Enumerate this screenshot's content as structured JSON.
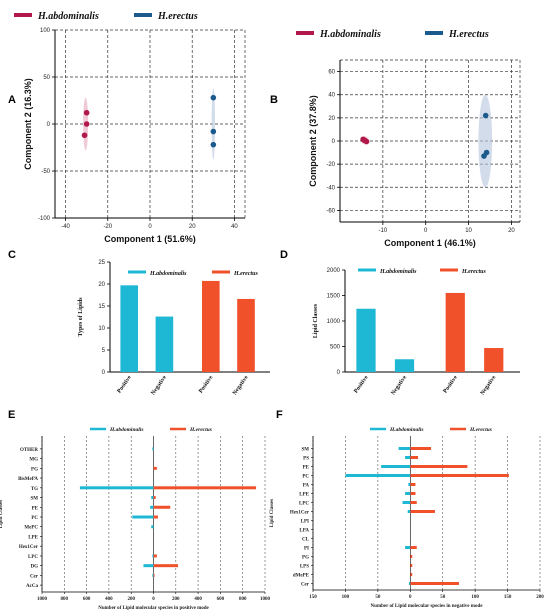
{
  "colors": {
    "ha_pca": "#b0194a",
    "he_pca": "#1a5a8c",
    "ha": "#1fb8d4",
    "he": "#f0512b"
  },
  "chart_data": [
    {
      "id": "A",
      "type": "scatter",
      "xlabel": "Component 1 (51.6%)",
      "ylabel": "Component 2 (16.3%)",
      "xlim": [
        -45,
        45
      ],
      "ylim": [
        -100,
        100
      ],
      "xticks": [
        -40,
        -20,
        0,
        20,
        40
      ],
      "yticks": [
        -100,
        -50,
        0,
        50,
        100
      ],
      "legend": [
        "H.abdominalis",
        "H.erectus"
      ],
      "series": [
        {
          "name": "H.abdominalis",
          "x": [
            -30,
            -30,
            -31
          ],
          "y": [
            12,
            0,
            -12
          ],
          "ellipse": {
            "cx": -30.5,
            "cy": 0,
            "rx": 1.2,
            "ry": 28
          }
        },
        {
          "name": "H.erectus",
          "x": [
            30,
            30,
            30
          ],
          "y": [
            28,
            -8,
            -22
          ],
          "ellipse": {
            "cx": 30,
            "cy": 0,
            "rx": 0.8,
            "ry": 38
          }
        }
      ]
    },
    {
      "id": "B",
      "type": "scatter",
      "xlabel": "Component 1 (46.1%)",
      "ylabel": "Component 2 (37.8%)",
      "xlim": [
        -20,
        22
      ],
      "ylim": [
        -70,
        70
      ],
      "xticks": [
        -10,
        0,
        10,
        20
      ],
      "yticks": [
        -60,
        -40,
        -20,
        0,
        20,
        40,
        60
      ],
      "legend": [
        "H.abdominalis",
        "H.erectus"
      ],
      "series": [
        {
          "name": "H.abdominalis",
          "x": [
            -14.6,
            -14.2,
            -13.8,
            -14.4
          ],
          "y": [
            1.5,
            0.5,
            -0.5,
            0.8
          ],
          "ellipse": {
            "cx": -14.2,
            "cy": 0.5,
            "rx": 0.9,
            "ry": 3.5
          }
        },
        {
          "name": "H.erectus",
          "x": [
            14,
            14.2,
            13.6
          ],
          "y": [
            22,
            -10,
            -13
          ],
          "ellipse": {
            "cx": 13.9,
            "cy": 0,
            "rx": 1.6,
            "ry": 40
          }
        }
      ]
    },
    {
      "id": "C",
      "type": "bar",
      "ylabel": "Types of Lipids",
      "ylim": [
        0,
        25
      ],
      "yticks": [
        0,
        5,
        10,
        15,
        20,
        25
      ],
      "legend": [
        "H.abdominalis",
        "H.erectus"
      ],
      "groups": [
        {
          "name": "H.abdominalis",
          "categories": [
            "Positive",
            "Negative"
          ],
          "values": [
            19.7,
            12.6
          ]
        },
        {
          "name": "H.erectus",
          "categories": [
            "Positive",
            "Negative"
          ],
          "values": [
            20.7,
            16.6
          ]
        }
      ]
    },
    {
      "id": "D",
      "type": "bar",
      "ylabel": "Lipid Classes",
      "ylim": [
        0,
        2000
      ],
      "yticks": [
        0,
        500,
        1000,
        1500,
        2000
      ],
      "legend": [
        "H.abdominalis",
        "H.erectus"
      ],
      "groups": [
        {
          "name": "H.abdominalis",
          "categories": [
            "Positive",
            "Negative"
          ],
          "values": [
            1240,
            250
          ]
        },
        {
          "name": "H.erectus",
          "categories": [
            "Positive",
            "Negative"
          ],
          "values": [
            1550,
            470
          ]
        }
      ]
    },
    {
      "id": "E",
      "type": "bar",
      "orientation": "horizontal-diverging",
      "xlabel": "Number of Lipid molecular species in positive mode",
      "ylabel": "Lipid Classes",
      "xlim": [
        -1000,
        1000
      ],
      "xticks": [
        -1000,
        -800,
        -600,
        -400,
        -200,
        0,
        200,
        400,
        600,
        800,
        1000
      ],
      "xtick_labels": [
        "1000",
        "800",
        "600",
        "400",
        "200",
        "0",
        "200",
        "400",
        "600",
        "800",
        "1000"
      ],
      "legend": [
        "H.abdominalis",
        "H.erectus"
      ],
      "categories": [
        "OTHER",
        "MG",
        "PG",
        "BisMePA",
        "TG",
        "SM",
        "PE",
        "PC",
        "MePC",
        "LPE",
        "Hex1Cer",
        "LPC",
        "DG",
        "Cer",
        "AcCa"
      ],
      "series": [
        {
          "name": "H.abdominalis",
          "values": [
            10,
            0,
            0,
            0,
            660,
            20,
            30,
            190,
            20,
            0,
            0,
            10,
            90,
            10,
            0
          ]
        },
        {
          "name": "H.erectus",
          "values": [
            0,
            0,
            30,
            0,
            920,
            20,
            150,
            40,
            0,
            0,
            0,
            30,
            220,
            10,
            0
          ]
        }
      ]
    },
    {
      "id": "F",
      "type": "bar",
      "orientation": "horizontal-diverging",
      "xlabel": "Number of Lipid molecular species in negative mode",
      "ylabel": "Lipid Classes",
      "xlim": [
        -150,
        200
      ],
      "xticks": [
        -150,
        -100,
        -50,
        0,
        50,
        100,
        150,
        200
      ],
      "xtick_labels": [
        "150",
        "100",
        "50",
        "0",
        "50",
        "100",
        "150",
        "200"
      ],
      "legend": [
        "H.abdominalis",
        "H.erectus"
      ],
      "categories": [
        "SM",
        "PS",
        "PE",
        "PC",
        "PA",
        "LPE",
        "LPC",
        "Hex1Cer",
        "LPI",
        "LPA",
        "CL",
        "PI",
        "PG",
        "LPS",
        "dMePE",
        "Cer"
      ],
      "series": [
        {
          "name": "H.abdominalis",
          "values": [
            18,
            8,
            45,
            100,
            3,
            8,
            12,
            4,
            0,
            0,
            0,
            8,
            0,
            0,
            0,
            2
          ]
        },
        {
          "name": "H.erectus",
          "values": [
            32,
            12,
            88,
            152,
            8,
            8,
            10,
            38,
            0,
            0,
            0,
            10,
            3,
            3,
            3,
            75
          ]
        }
      ]
    }
  ]
}
